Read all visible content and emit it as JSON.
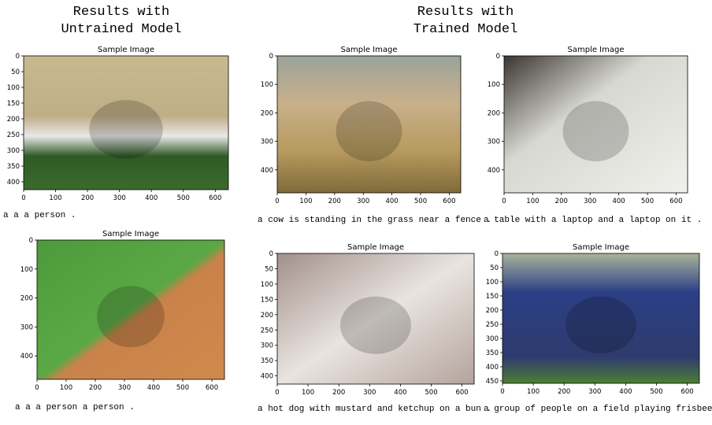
{
  "headers": [
    {
      "lines": [
        "Results with",
        "Untrained Model"
      ]
    },
    {
      "lines": [
        "Results with",
        "Trained Model"
      ]
    }
  ],
  "panels": [
    {
      "title": "Sample Image",
      "xticks": [
        0,
        100,
        200,
        300,
        400,
        500,
        600
      ],
      "yticks": [
        0,
        50,
        100,
        150,
        200,
        250,
        300,
        350,
        400
      ],
      "caption": "a a a person ."
    },
    {
      "title": "Sample Image",
      "xticks": [
        0,
        100,
        200,
        300,
        400,
        500,
        600
      ],
      "yticks": [
        0,
        100,
        200,
        300,
        400
      ],
      "caption": "a a a person a person ."
    },
    {
      "title": "Sample Image",
      "xticks": [
        0,
        100,
        200,
        300,
        400,
        500,
        600
      ],
      "yticks": [
        0,
        100,
        200,
        300,
        400
      ],
      "caption": "a cow is standing in the grass near a fence ."
    },
    {
      "title": "Sample Image",
      "xticks": [
        0,
        100,
        200,
        300,
        400,
        500,
        600
      ],
      "yticks": [
        0,
        100,
        200,
        300,
        400
      ],
      "caption": "a table with a laptop and a laptop on it ."
    },
    {
      "title": "Sample Image",
      "xticks": [
        0,
        100,
        200,
        300,
        400,
        500,
        600
      ],
      "yticks": [
        0,
        50,
        100,
        150,
        200,
        250,
        300,
        350,
        400
      ],
      "caption": "a hot dog with mustard and ketchup on a bun ."
    },
    {
      "title": "Sample Image",
      "xticks": [
        0,
        100,
        200,
        300,
        400,
        500,
        600
      ],
      "yticks": [
        0,
        50,
        100,
        150,
        200,
        250,
        300,
        350,
        400,
        450
      ],
      "caption": "a group of people on a field playing frisbee ."
    }
  ]
}
